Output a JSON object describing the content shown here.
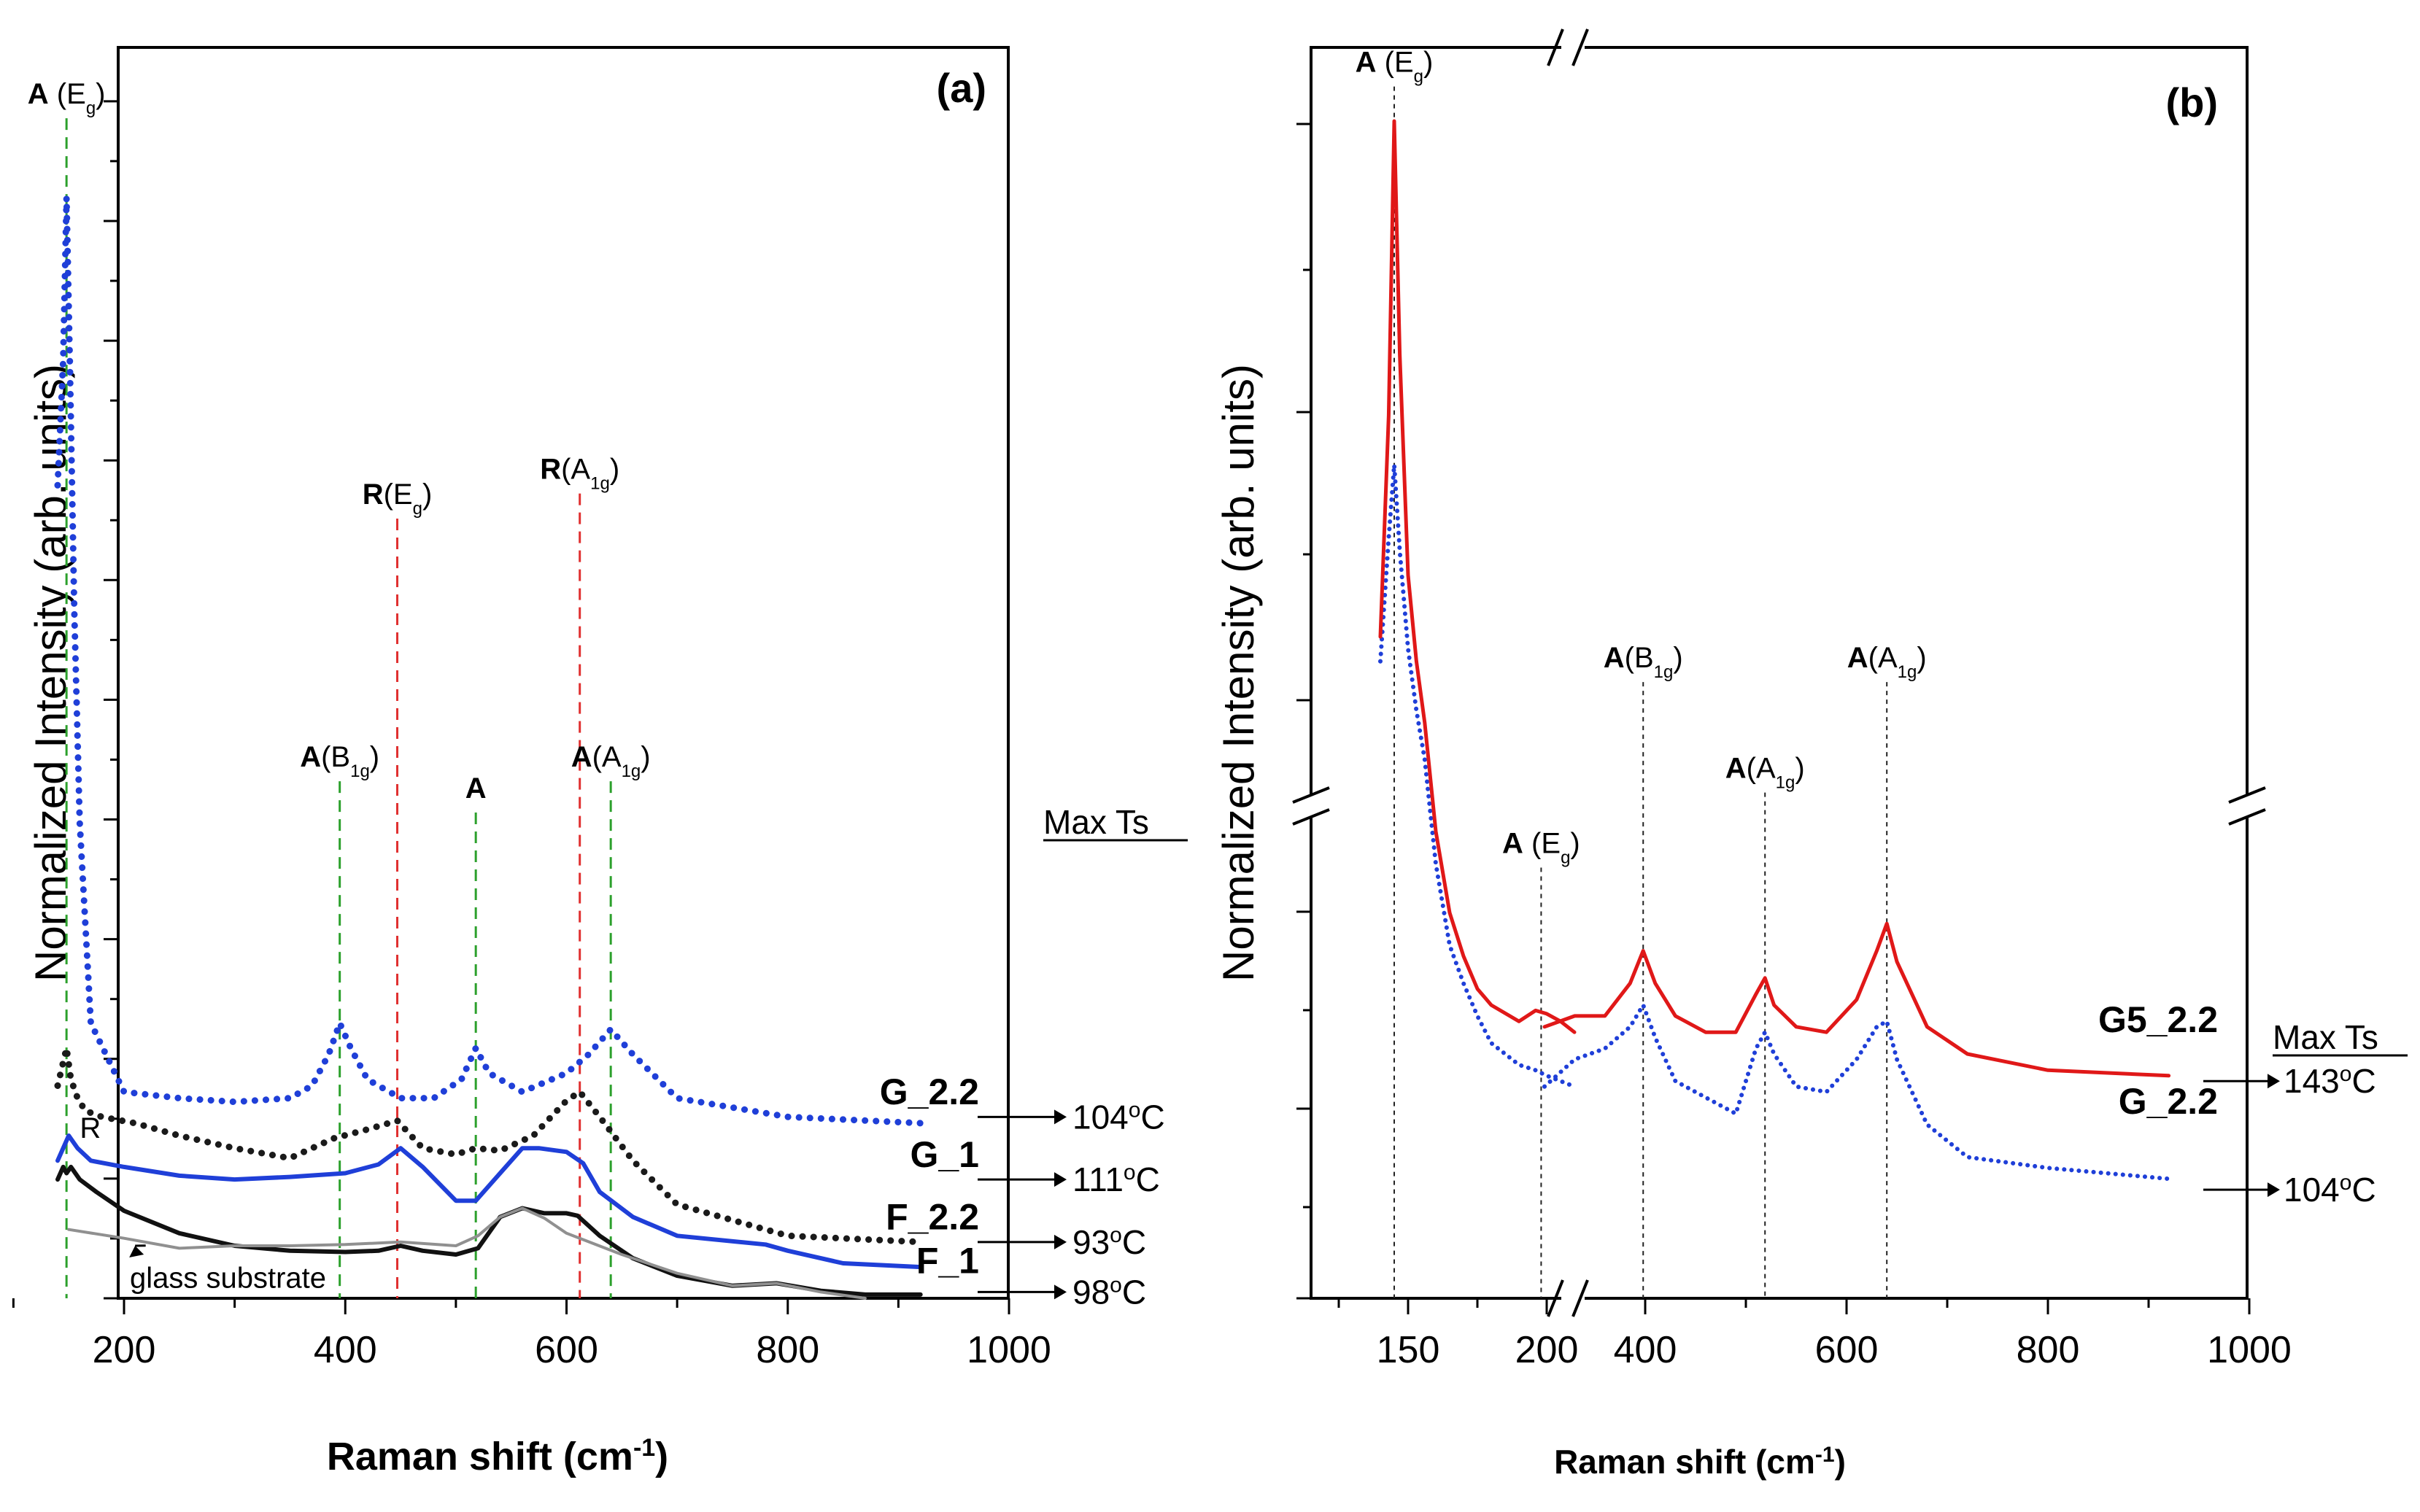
{
  "chart_data": [
    {
      "type": "line",
      "panel": "(a)",
      "xlabel": "Raman shift (cm",
      "xlabel_sup": "-1",
      "xlabel_close": ")",
      "ylabel": "Normalized Intensity (arb. units)",
      "xlim": [
        100,
        1000
      ],
      "ylim": [
        0,
        10
      ],
      "xticks": [
        "200",
        "400",
        "600",
        "800",
        "1000"
      ],
      "xtick_values": [
        200,
        400,
        600,
        800,
        1000
      ],
      "peak_lines": [
        {
          "x": 148,
          "main": "A",
          "rest": " (E",
          "sub": "g",
          "close": ")",
          "color": "#2ca02c",
          "label_y": 9.55
        },
        {
          "x": 395,
          "main": "A",
          "rest": "(B",
          "sub": "1g",
          "close": ")",
          "color": "#2ca02c",
          "label_y": 4.25
        },
        {
          "x": 447,
          "main": "R",
          "rest": "(E",
          "sub": "g",
          "close": ")",
          "color": "#e03030",
          "label_y": 6.35
        },
        {
          "x": 518,
          "main": "A",
          "rest": "",
          "sub": "",
          "close": "",
          "color": "#2ca02c",
          "label_y": 4.0
        },
        {
          "x": 612,
          "main": "R",
          "rest": "(A",
          "sub": "1g",
          "close": ")",
          "color": "#e03030",
          "label_y": 6.55
        },
        {
          "x": 640,
          "main": "A",
          "rest": "(A",
          "sub": "1g",
          "close": ")",
          "color": "#2ca02c",
          "label_y": 4.25
        }
      ],
      "series": [
        {
          "name": "G_2.2",
          "temp": "104°C",
          "color": "#1f3fd8",
          "style": "dotted",
          "x": [
            140,
            145,
            148,
            151,
            155,
            160,
            170,
            200,
            250,
            300,
            350,
            370,
            385,
            395,
            405,
            420,
            450,
            480,
            505,
            518,
            530,
            560,
            600,
            620,
            640,
            660,
            700,
            800,
            920
          ],
          "y": [
            6.5,
            7.5,
            8.8,
            7.5,
            5.5,
            3.8,
            2.2,
            1.65,
            1.6,
            1.57,
            1.6,
            1.7,
            1.95,
            2.2,
            2.0,
            1.75,
            1.6,
            1.6,
            1.75,
            2.0,
            1.8,
            1.65,
            1.8,
            1.95,
            2.15,
            1.95,
            1.6,
            1.45,
            1.4
          ]
        },
        {
          "name": "G_1",
          "temp": "111°C",
          "color": "#1a1a1a",
          "style": "dotted",
          "x": [
            140,
            148,
            152,
            158,
            165,
            180,
            210,
            250,
            300,
            350,
            390,
            420,
            447,
            470,
            500,
            518,
            540,
            570,
            600,
            612,
            630,
            660,
            700,
            800,
            920
          ],
          "y": [
            1.7,
            2.0,
            1.75,
            1.6,
            1.5,
            1.45,
            1.4,
            1.3,
            1.2,
            1.12,
            1.28,
            1.35,
            1.42,
            1.2,
            1.15,
            1.2,
            1.18,
            1.3,
            1.58,
            1.65,
            1.45,
            1.1,
            0.75,
            0.5,
            0.45
          ]
        },
        {
          "name": "F_2.2",
          "temp": "93°C",
          "color": "#1f3fd8",
          "style": "solid",
          "x": [
            140,
            150,
            158,
            170,
            200,
            250,
            300,
            350,
            400,
            430,
            450,
            470,
            500,
            518,
            540,
            560,
            575,
            600,
            615,
            630,
            660,
            700,
            780,
            800,
            850,
            920
          ],
          "y": [
            1.1,
            1.3,
            1.2,
            1.1,
            1.05,
            0.98,
            0.95,
            0.97,
            1.0,
            1.07,
            1.2,
            1.05,
            0.78,
            0.78,
            1.0,
            1.2,
            1.2,
            1.17,
            1.08,
            0.85,
            0.65,
            0.5,
            0.43,
            0.38,
            0.28,
            0.25
          ]
        },
        {
          "name": "F_1",
          "temp": "98°C",
          "color": "#111111",
          "style": "solid",
          "x": [
            140,
            145,
            148,
            152,
            160,
            175,
            200,
            250,
            300,
            350,
            400,
            430,
            450,
            470,
            500,
            520,
            540,
            560,
            580,
            600,
            610,
            630,
            660,
            700,
            750,
            790,
            830,
            870,
            920
          ],
          "y": [
            0.95,
            1.05,
            1.0,
            1.05,
            0.95,
            0.85,
            0.7,
            0.52,
            0.42,
            0.38,
            0.37,
            0.38,
            0.42,
            0.38,
            0.35,
            0.4,
            0.65,
            0.72,
            0.68,
            0.68,
            0.66,
            0.5,
            0.32,
            0.18,
            0.1,
            0.12,
            0.06,
            0.03,
            0.03
          ]
        },
        {
          "name": "glass substrate",
          "temp": "",
          "color": "#909090",
          "style": "solid",
          "x": [
            150,
            200,
            250,
            300,
            350,
            400,
            450,
            500,
            520,
            540,
            560,
            580,
            600,
            650,
            700,
            750,
            790,
            830,
            870
          ],
          "y": [
            0.55,
            0.48,
            0.4,
            0.42,
            0.42,
            0.43,
            0.45,
            0.42,
            0.5,
            0.65,
            0.72,
            0.64,
            0.52,
            0.35,
            0.2,
            0.1,
            0.12,
            0.05,
            0.0
          ]
        }
      ],
      "series_labels": [
        {
          "name": "G_2.2",
          "label_y": 1.55,
          "temp": "104°C",
          "temp_y": 1.45
        },
        {
          "name": "G_1",
          "label_y": 1.05,
          "temp": "111°C",
          "temp_y": 0.95
        },
        {
          "name": "F_2.2",
          "label_y": 0.55,
          "temp": "93°C",
          "temp_y": 0.45
        },
        {
          "name": "F_1",
          "label_y": 0.2,
          "temp": "98°C",
          "temp_y": 0.05
        }
      ],
      "legend_header": "Max Ts",
      "annotation_r": "R",
      "annotation_glass": "glass substrate"
    },
    {
      "type": "line",
      "panel": "(b)",
      "xlabel": "Raman shift (cm",
      "xlabel_sup": "-1",
      "xlabel_close": ")",
      "ylabel": "Normalized Intensity (arb. units)",
      "x_break": "broken axis: 120–215 then 300–1000",
      "xticks": [
        "150",
        "200",
        "400",
        "600",
        "800",
        "1000"
      ],
      "xtick_values": [
        150,
        200,
        400,
        600,
        800,
        1000
      ],
      "peak_lines": [
        {
          "x": 145,
          "main": "A",
          "rest": " (E",
          "sub": "g",
          "close": ")",
          "label_y": 10.3
        },
        {
          "x": 198,
          "main": "A",
          "rest": " (E",
          "sub": "g",
          "close": ")",
          "label_y": 4.1
        },
        {
          "x": 398,
          "main": "A",
          "rest": "(B",
          "sub": "1g",
          "close": ")",
          "label_y": 5.45
        },
        {
          "x": 519,
          "main": "A",
          "rest": "(A",
          "sub": "1g",
          "close": ")",
          "label_y": 4.55
        },
        {
          "x": 640,
          "main": "A",
          "rest": "(A",
          "sub": "1g",
          "close": ")",
          "label_y": 5.45
        }
      ],
      "series": [
        {
          "name": "G5_2.2",
          "temp": "143°C",
          "color": "#e01818",
          "style": "solid",
          "x": [
            140,
            143,
            145,
            147,
            150,
            153,
            156,
            160,
            165,
            170,
            175,
            180,
            190,
            196,
            200,
            205,
            210,
            300,
            330,
            360,
            385,
            398,
            410,
            430,
            460,
            490,
            510,
            519,
            528,
            550,
            580,
            610,
            630,
            640,
            650,
            680,
            720,
            800,
            920
          ],
          "y": [
            5.7,
            7.5,
            9.9,
            8.0,
            6.2,
            5.5,
            5.0,
            4.3,
            3.55,
            3.15,
            2.85,
            2.7,
            2.55,
            2.65,
            2.62,
            2.55,
            2.45,
            2.5,
            2.6,
            2.6,
            2.9,
            3.2,
            2.9,
            2.6,
            2.45,
            2.45,
            2.8,
            2.95,
            2.7,
            2.5,
            2.45,
            2.75,
            3.2,
            3.45,
            3.1,
            2.5,
            2.25,
            2.1,
            2.05
          ]
        },
        {
          "name": "G_2.2",
          "temp": "104°C",
          "color": "#1f3fd8",
          "style": "dotted",
          "x": [
            140,
            143,
            145,
            147,
            150,
            153,
            156,
            160,
            165,
            170,
            175,
            180,
            190,
            196,
            200,
            205,
            210,
            300,
            330,
            360,
            385,
            398,
            410,
            430,
            460,
            490,
            510,
            519,
            528,
            550,
            580,
            610,
            630,
            640,
            650,
            680,
            720,
            800,
            920
          ],
          "y": [
            5.5,
            6.5,
            7.1,
            6.4,
            5.6,
            5.1,
            4.7,
            4.0,
            3.25,
            2.9,
            2.6,
            2.35,
            2.15,
            2.1,
            2.05,
            2.0,
            1.95,
            1.95,
            2.2,
            2.3,
            2.5,
            2.7,
            2.4,
            2.0,
            1.85,
            1.7,
            2.3,
            2.45,
            2.25,
            1.95,
            1.9,
            2.2,
            2.5,
            2.55,
            2.2,
            1.6,
            1.3,
            1.2,
            1.1
          ]
        }
      ],
      "series_labels": [
        {
          "name": "G5_2.2",
          "label_y": 2.45,
          "temp": "143°C",
          "temp_y": 2.0
        },
        {
          "name": "G_2.2",
          "label_y": 1.7,
          "temp": "104°C",
          "temp_y": 1.0
        }
      ],
      "legend_header": "Max Ts"
    }
  ]
}
